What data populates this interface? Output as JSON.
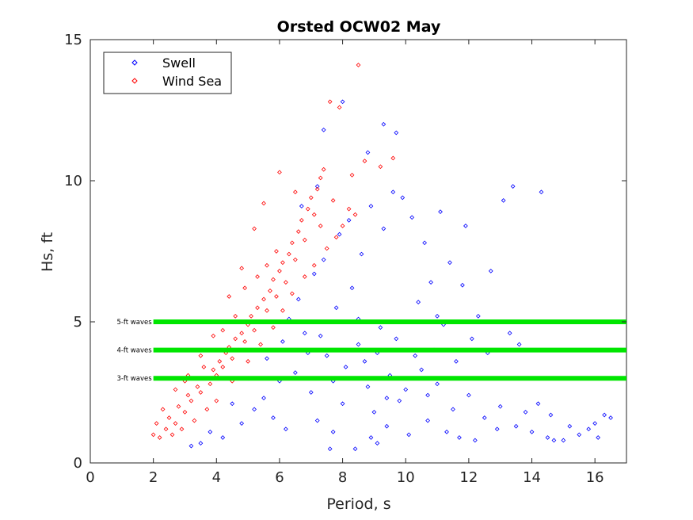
{
  "chart_data": {
    "type": "scatter",
    "title": "Orsted OCW02 May",
    "xlabel": "Period, s",
    "ylabel": "Hs, ft",
    "xlim": [
      0,
      17
    ],
    "ylim": [
      0,
      15
    ],
    "xticks": [
      "0",
      "2",
      "4",
      "6",
      "8",
      "10",
      "12",
      "14",
      "16"
    ],
    "yticks": [
      "0",
      "5",
      "10",
      "15"
    ],
    "grid": false,
    "legend_position": "top-left",
    "series": [
      {
        "name": "Swell",
        "marker": "diamond-open",
        "color": "#0000ff",
        "points": [
          [
            6.5,
            3.2
          ],
          [
            7.0,
            2.5
          ],
          [
            7.5,
            3.8
          ],
          [
            8.0,
            2.1
          ],
          [
            8.5,
            4.2
          ],
          [
            9.0,
            1.8
          ],
          [
            9.5,
            3.1
          ],
          [
            10.0,
            2.6
          ],
          [
            6.8,
            4.6
          ],
          [
            7.2,
            1.5
          ],
          [
            7.8,
            5.5
          ],
          [
            8.3,
            6.2
          ],
          [
            8.7,
            3.6
          ],
          [
            9.2,
            4.8
          ],
          [
            9.8,
            2.2
          ],
          [
            10.5,
            3.3
          ],
          [
            11.0,
            2.8
          ],
          [
            11.5,
            1.9
          ],
          [
            12.0,
            2.4
          ],
          [
            12.5,
            1.6
          ],
          [
            13.0,
            2.0
          ],
          [
            13.5,
            1.3
          ],
          [
            14.0,
            1.1
          ],
          [
            14.5,
            0.9
          ],
          [
            15.0,
            0.8
          ],
          [
            15.5,
            1.0
          ],
          [
            16.0,
            1.4
          ],
          [
            16.3,
            1.7
          ],
          [
            16.5,
            1.6
          ],
          [
            14.7,
            0.8
          ],
          [
            15.8,
            1.2
          ],
          [
            16.1,
            0.9
          ],
          [
            5.5,
            2.3
          ],
          [
            5.8,
            1.6
          ],
          [
            6.0,
            2.9
          ],
          [
            6.2,
            1.2
          ],
          [
            5.2,
            1.9
          ],
          [
            4.8,
            1.4
          ],
          [
            4.5,
            2.1
          ],
          [
            4.2,
            0.9
          ],
          [
            3.8,
            1.1
          ],
          [
            3.5,
            0.7
          ],
          [
            3.2,
            0.6
          ],
          [
            5.0,
            3.0
          ],
          [
            5.6,
            3.7
          ],
          [
            6.1,
            4.3
          ],
          [
            6.6,
            5.8
          ],
          [
            7.1,
            6.7
          ],
          [
            7.4,
            7.2
          ],
          [
            7.9,
            8.1
          ],
          [
            8.2,
            8.6
          ],
          [
            8.6,
            7.4
          ],
          [
            8.9,
            9.1
          ],
          [
            9.3,
            8.3
          ],
          [
            9.6,
            9.6
          ],
          [
            9.9,
            9.4
          ],
          [
            10.2,
            8.7
          ],
          [
            10.6,
            7.8
          ],
          [
            11.1,
            8.9
          ],
          [
            11.4,
            7.1
          ],
          [
            11.8,
            6.3
          ],
          [
            12.3,
            5.2
          ],
          [
            12.7,
            6.8
          ],
          [
            13.1,
            9.3
          ],
          [
            13.4,
            9.8
          ],
          [
            14.3,
            9.6
          ],
          [
            11.9,
            8.4
          ],
          [
            10.8,
            6.4
          ],
          [
            10.4,
            5.7
          ],
          [
            11.2,
            4.9
          ],
          [
            12.1,
            4.4
          ],
          [
            12.6,
            3.9
          ],
          [
            13.3,
            4.6
          ],
          [
            13.6,
            4.2
          ],
          [
            11.6,
            3.6
          ],
          [
            10.9,
            4.0
          ],
          [
            7.6,
            0.5
          ],
          [
            8.4,
            0.5
          ],
          [
            9.1,
            0.7
          ],
          [
            8.8,
            11.0
          ],
          [
            8.0,
            12.8
          ],
          [
            9.3,
            12.0
          ],
          [
            9.7,
            11.7
          ],
          [
            7.4,
            11.8
          ],
          [
            7.2,
            9.8
          ],
          [
            6.7,
            9.1
          ],
          [
            7.7,
            1.1
          ],
          [
            8.9,
            0.9
          ],
          [
            9.4,
            1.3
          ],
          [
            10.1,
            1.0
          ],
          [
            10.7,
            1.5
          ],
          [
            11.3,
            1.1
          ],
          [
            11.7,
            0.9
          ],
          [
            12.2,
            0.8
          ],
          [
            12.9,
            1.2
          ],
          [
            13.8,
            1.8
          ],
          [
            14.2,
            2.1
          ],
          [
            14.6,
            1.7
          ],
          [
            15.2,
            1.3
          ],
          [
            6.3,
            5.1
          ],
          [
            6.9,
            3.9
          ],
          [
            7.3,
            4.5
          ],
          [
            7.7,
            2.9
          ],
          [
            8.1,
            3.4
          ],
          [
            8.5,
            5.1
          ],
          [
            8.8,
            2.7
          ],
          [
            9.1,
            3.9
          ],
          [
            9.4,
            2.3
          ],
          [
            9.7,
            4.4
          ],
          [
            10.3,
            3.8
          ],
          [
            10.7,
            2.4
          ],
          [
            11.0,
            5.2
          ]
        ]
      },
      {
        "name": "Wind Sea",
        "marker": "diamond-open",
        "color": "#ff0000",
        "points": [
          [
            2.0,
            1.0
          ],
          [
            2.2,
            0.9
          ],
          [
            2.4,
            1.2
          ],
          [
            2.5,
            1.6
          ],
          [
            2.7,
            1.4
          ],
          [
            2.8,
            2.0
          ],
          [
            3.0,
            1.8
          ],
          [
            3.1,
            2.4
          ],
          [
            3.2,
            2.2
          ],
          [
            3.4,
            2.7
          ],
          [
            3.5,
            2.5
          ],
          [
            3.6,
            3.0
          ],
          [
            3.8,
            2.8
          ],
          [
            3.9,
            3.3
          ],
          [
            4.0,
            3.1
          ],
          [
            4.1,
            3.6
          ],
          [
            4.2,
            3.4
          ],
          [
            4.3,
            3.9
          ],
          [
            4.4,
            4.1
          ],
          [
            4.5,
            3.7
          ],
          [
            4.6,
            4.4
          ],
          [
            4.7,
            4.0
          ],
          [
            4.8,
            4.6
          ],
          [
            4.9,
            4.3
          ],
          [
            5.0,
            4.9
          ],
          [
            5.1,
            5.2
          ],
          [
            5.2,
            4.7
          ],
          [
            5.3,
            5.5
          ],
          [
            5.4,
            5.0
          ],
          [
            5.5,
            5.8
          ],
          [
            5.6,
            5.4
          ],
          [
            5.7,
            6.1
          ],
          [
            5.8,
            6.5
          ],
          [
            5.9,
            5.9
          ],
          [
            6.0,
            6.8
          ],
          [
            6.1,
            7.1
          ],
          [
            6.2,
            6.4
          ],
          [
            6.3,
            7.4
          ],
          [
            6.4,
            7.8
          ],
          [
            6.5,
            7.2
          ],
          [
            6.6,
            8.2
          ],
          [
            6.7,
            8.6
          ],
          [
            6.8,
            7.9
          ],
          [
            6.9,
            9.0
          ],
          [
            7.0,
            9.4
          ],
          [
            7.1,
            8.8
          ],
          [
            7.2,
            9.7
          ],
          [
            7.3,
            10.1
          ],
          [
            7.4,
            10.4
          ],
          [
            7.6,
            12.8
          ],
          [
            7.9,
            12.6
          ],
          [
            8.3,
            10.2
          ],
          [
            8.5,
            14.1
          ],
          [
            8.7,
            10.7
          ],
          [
            9.2,
            10.5
          ],
          [
            9.6,
            10.8
          ],
          [
            4.0,
            2.2
          ],
          [
            3.7,
            1.9
          ],
          [
            3.3,
            1.5
          ],
          [
            2.9,
            1.2
          ],
          [
            2.6,
            1.0
          ],
          [
            4.5,
            2.9
          ],
          [
            5.0,
            3.6
          ],
          [
            5.4,
            4.2
          ],
          [
            5.8,
            4.8
          ],
          [
            6.1,
            5.4
          ],
          [
            6.4,
            6.0
          ],
          [
            6.8,
            6.6
          ],
          [
            7.1,
            7.0
          ],
          [
            7.5,
            7.6
          ],
          [
            7.8,
            8.0
          ],
          [
            8.0,
            8.4
          ],
          [
            6.0,
            10.3
          ],
          [
            5.2,
            8.3
          ],
          [
            4.8,
            6.9
          ],
          [
            4.4,
            5.9
          ],
          [
            3.9,
            4.5
          ],
          [
            3.5,
            3.8
          ],
          [
            3.1,
            3.1
          ],
          [
            2.7,
            2.6
          ],
          [
            5.5,
            9.2
          ],
          [
            6.5,
            9.6
          ],
          [
            7.7,
            9.3
          ],
          [
            8.2,
            9.0
          ],
          [
            8.4,
            8.8
          ],
          [
            7.3,
            8.4
          ],
          [
            5.9,
            7.5
          ],
          [
            5.6,
            7.0
          ],
          [
            4.6,
            5.2
          ],
          [
            4.2,
            4.7
          ],
          [
            3.6,
            3.4
          ],
          [
            3.0,
            2.9
          ],
          [
            2.3,
            1.9
          ],
          [
            2.1,
            1.4
          ],
          [
            4.9,
            6.2
          ],
          [
            5.3,
            6.6
          ]
        ]
      }
    ],
    "reference_lines": [
      {
        "label": "5-ft waves",
        "y": 5,
        "x_range": [
          2,
          17
        ],
        "color": "#00e600"
      },
      {
        "label": "4-ft waves",
        "y": 4,
        "x_range": [
          2,
          17
        ],
        "color": "#00e600"
      },
      {
        "label": "3-ft waves",
        "y": 3,
        "x_range": [
          2,
          17
        ],
        "color": "#00e600"
      }
    ]
  }
}
